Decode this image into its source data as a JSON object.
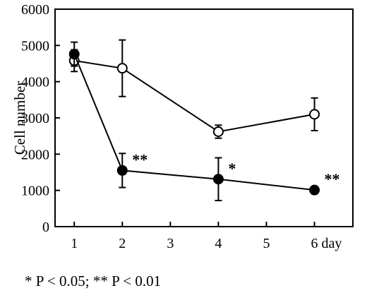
{
  "chart_data": {
    "type": "line",
    "ylabel": "Cell  number",
    "x_ticks": [
      {
        "value": 1,
        "label": "1"
      },
      {
        "value": 2,
        "label": "2"
      },
      {
        "value": 3,
        "label": "3"
      },
      {
        "value": 4,
        "label": "4"
      },
      {
        "value": 5,
        "label": "5"
      },
      {
        "value": 6,
        "label": "6 day"
      }
    ],
    "y_ticks": [
      0,
      1000,
      2000,
      3000,
      4000,
      5000,
      6000
    ],
    "xlim": [
      0.6,
      6.8
    ],
    "ylim": [
      0,
      6000
    ],
    "grid": false,
    "series": [
      {
        "marker": "open-circle",
        "color": "#000000",
        "x": [
          1,
          2,
          4,
          6
        ],
        "y": [
          4580,
          4370,
          2620,
          3100
        ],
        "error": [
          300,
          780,
          180,
          450
        ]
      },
      {
        "marker": "filled-circle",
        "color": "#000000",
        "x": [
          1,
          2,
          4,
          6
        ],
        "y": [
          4760,
          1550,
          1310,
          1010
        ],
        "error": [
          330,
          470,
          590,
          70
        ]
      }
    ],
    "annotations": [
      {
        "text": "**",
        "x": 2,
        "y": 1550
      },
      {
        "text": "*",
        "x": 4,
        "y": 1310
      },
      {
        "text": "**",
        "x": 6,
        "y": 1010
      }
    ],
    "footnote": "* P < 0.05; ** P < 0.01"
  }
}
